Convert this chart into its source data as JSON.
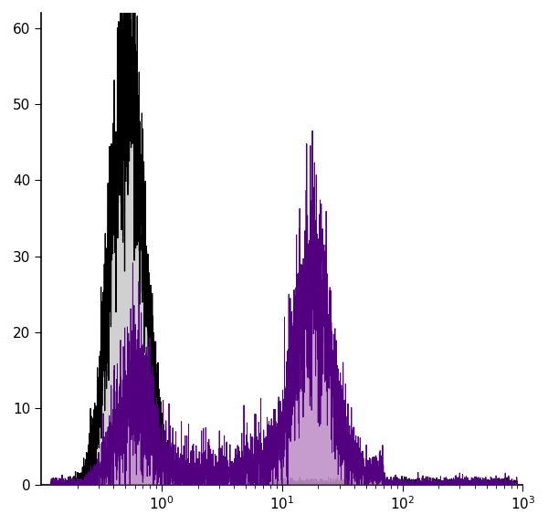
{
  "xlim": [
    0.1,
    1000
  ],
  "ylim": [
    0,
    62
  ],
  "yticks": [
    0,
    10,
    20,
    30,
    40,
    50,
    60
  ],
  "background_color": "#ffffff",
  "gray_fill": "#d0d0d0",
  "gray_edge": "#000000",
  "purple_dark": "#520080",
  "purple_light": "#c090c8",
  "noise_seed": 42,
  "n_points": 4000,
  "x_min": 0.12,
  "x_max": 900
}
